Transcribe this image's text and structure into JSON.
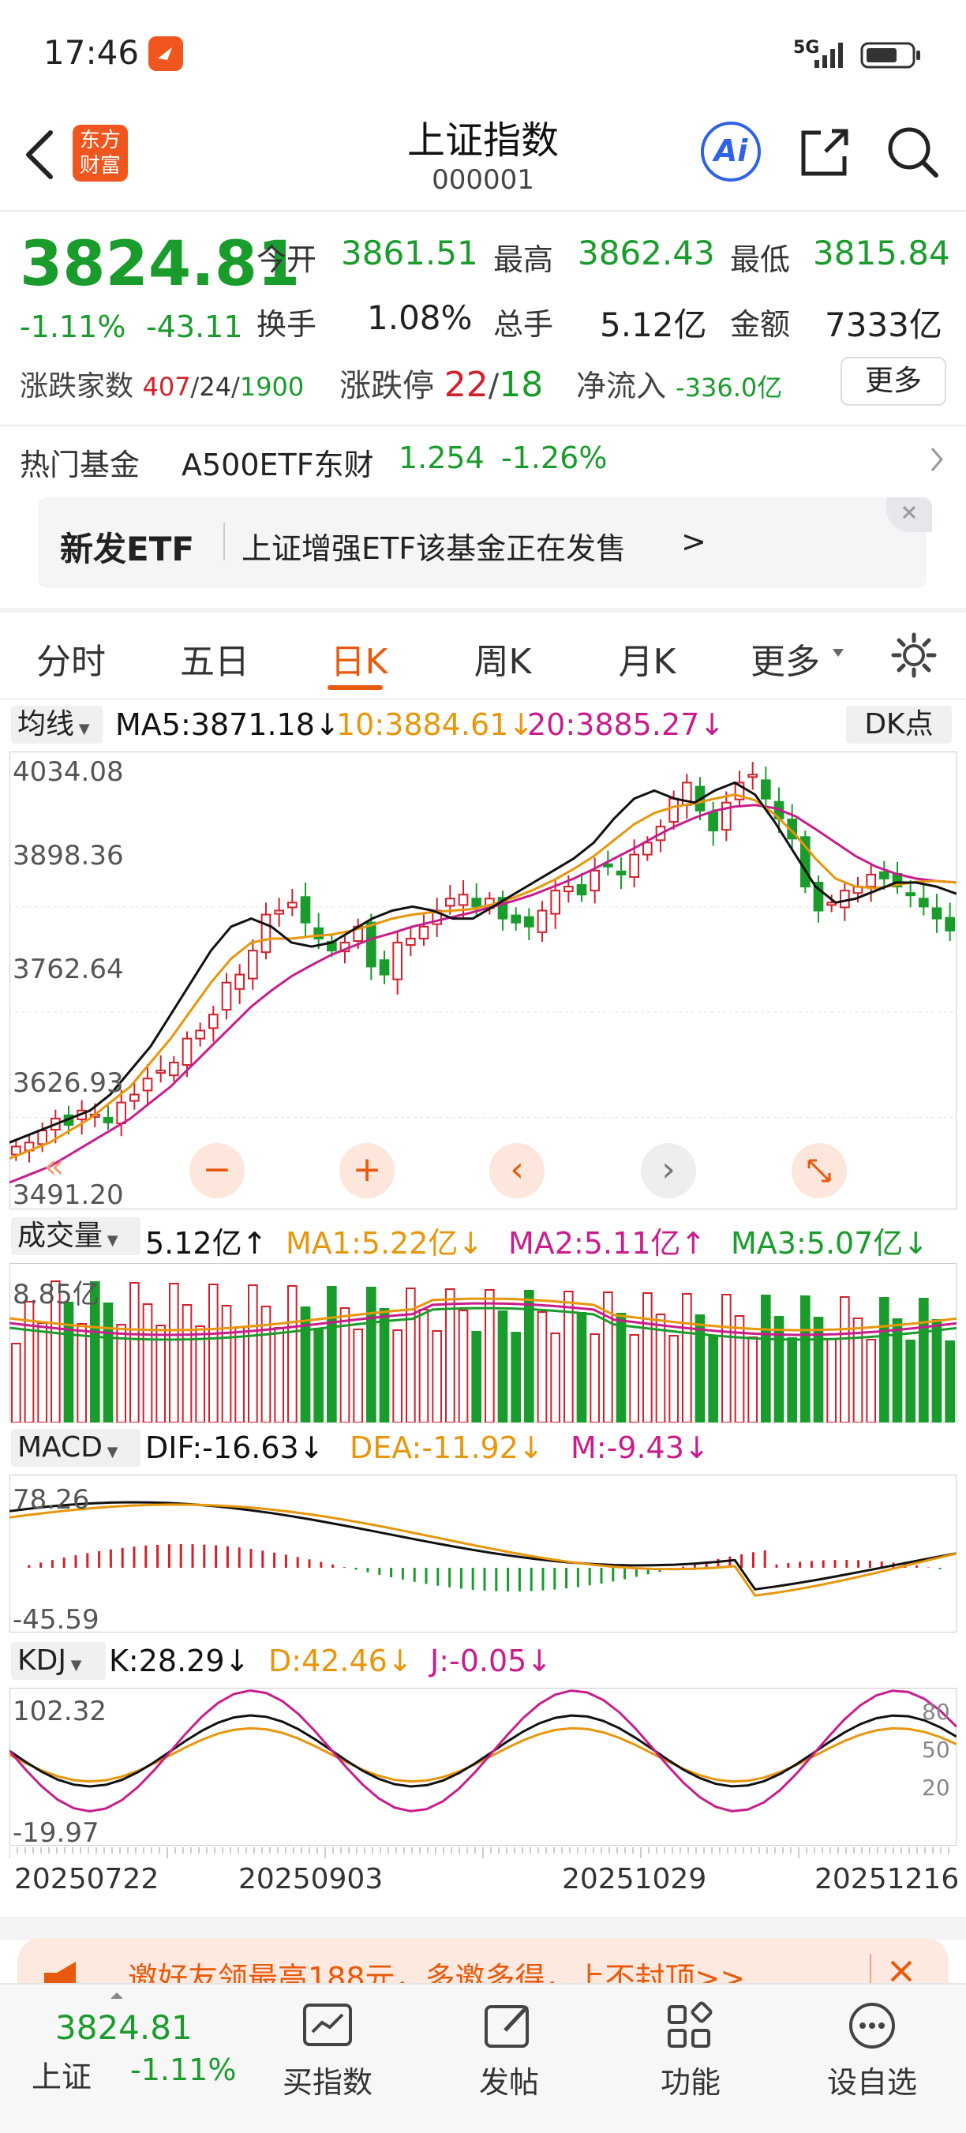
{
  "status_bar": {
    "time": "17:46",
    "network": "5G"
  },
  "header": {
    "title": "上证指数",
    "code": "000001",
    "brand_line1": "东方",
    "brand_line2": "财富",
    "ai_label": "Ai"
  },
  "quote": {
    "price": "3824.81",
    "change_pct": "-1.11%",
    "change": "-43.11",
    "open_label": "今开",
    "open": "3861.51",
    "high_label": "最高",
    "high": "3862.43",
    "low_label": "最低",
    "low": "3815.84",
    "turnover_label": "换手",
    "turnover": "1.08%",
    "volume_label": "总手",
    "volume": "5.12亿",
    "amount_label": "金额",
    "amount": "7333亿",
    "breadth_label": "涨跌家数",
    "breadth_up": "407",
    "breadth_flat": "24",
    "breadth_down": "1900",
    "limit_label": "涨跌停",
    "limit_up": "22",
    "limit_down": "18",
    "flow_label": "净流入",
    "flow": "-336.0亿",
    "more_label": "更多"
  },
  "hot_fund": {
    "label": "热门基金",
    "name": "A500ETF东财",
    "price": "1.254",
    "change": "-1.26%"
  },
  "etf_banner": {
    "tag": "新发ETF",
    "text": "上证增强ETF该基金正在发售",
    "arrow": ">"
  },
  "tabs": [
    {
      "label": "分时"
    },
    {
      "label": "五日"
    },
    {
      "label": "日K"
    },
    {
      "label": "周K"
    },
    {
      "label": "月K"
    },
    {
      "label": "更多"
    }
  ],
  "active_tab": "日K",
  "ma_legend": {
    "selector": "均线",
    "ma5": "MA5:3871.18↓",
    "ma10": "10:3884.61↓",
    "ma20": "20:3885.27↓",
    "dk": "DK点"
  },
  "price_axis": [
    "4034.08",
    "3898.36",
    "3762.64",
    "3626.93",
    "3491.20"
  ],
  "vol_legend": {
    "selector": "成交量",
    "vol": "5.12亿↑",
    "ma1": "MA1:5.22亿↓",
    "ma2": "MA2:5.11亿↑",
    "ma3": "MA3:5.07亿↓",
    "axis_top": "8.85亿"
  },
  "macd_legend": {
    "selector": "MACD",
    "dif": "DIF:-16.63↓",
    "dea": "DEA:-11.92↓",
    "m": "M:-9.43↓",
    "axis_top": "78.26",
    "axis_bottom": "-45.59"
  },
  "kdj_legend": {
    "selector": "KDJ",
    "k": "K:28.29↓",
    "d": "D:42.46↓",
    "j": "J:-0.05↓",
    "axis_top": "102.32",
    "axis_bottom": "-19.97",
    "r80": "80",
    "r50": "50",
    "r20": "20"
  },
  "dates": [
    "20250722",
    "20250903",
    "20251029",
    "20251216"
  ],
  "promo": {
    "text": "邀好友领最高188元，多邀多得，上不封顶>>"
  },
  "bottom_nav": {
    "price": "3824.81",
    "name": "上证",
    "change": "-1.11%",
    "items": [
      {
        "label": "买指数"
      },
      {
        "label": "发帖"
      },
      {
        "label": "功能"
      },
      {
        "label": "设自选"
      }
    ]
  },
  "colors": {
    "up": "#d4202b",
    "down": "#1a9c2c",
    "accent": "#e8590c",
    "ma5": "#111111",
    "ma10": "#e8960c",
    "ma20": "#c81e8c",
    "ma3_vol": "#1a9c2c"
  },
  "chart_data": {
    "type": "candlestick",
    "y_range": [
      3491.2,
      4034.08
    ],
    "date_labels": [
      "20250722",
      "20250903",
      "20251029",
      "20251216"
    ],
    "closes": [
      3555,
      3560,
      3575,
      3590,
      3582,
      3600,
      3595,
      3585,
      3610,
      3620,
      3640,
      3650,
      3660,
      3690,
      3700,
      3720,
      3760,
      3770,
      3800,
      3845,
      3850,
      3860,
      3835,
      3815,
      3800,
      3810,
      3830,
      3780,
      3770,
      3810,
      3815,
      3830,
      3850,
      3865,
      3870,
      3855,
      3865,
      3840,
      3835,
      3830,
      3850,
      3875,
      3880,
      3870,
      3900,
      3905,
      3895,
      3920,
      3935,
      3955,
      3990,
      4010,
      3975,
      3950,
      3985,
      4010,
      4020,
      3990,
      3965,
      3940,
      3880,
      3850,
      3860,
      3875,
      3880,
      3895,
      3890,
      3880,
      3870,
      3855,
      3840,
      3825
    ],
    "ma5": [
      3560,
      3570,
      3580,
      3590,
      3600,
      3620,
      3650,
      3680,
      3720,
      3760,
      3800,
      3830,
      3840,
      3830,
      3810,
      3805,
      3810,
      3825,
      3840,
      3850,
      3855,
      3850,
      3840,
      3840,
      3855,
      3870,
      3885,
      3900,
      3915,
      3935,
      3965,
      3990,
      4000,
      3990,
      3985,
      4000,
      4010,
      3995,
      3960,
      3920,
      3880,
      3860,
      3865,
      3875,
      3885,
      3885,
      3880,
      3871
    ],
    "ma10": [
      3540,
      3550,
      3560,
      3575,
      3590,
      3610,
      3630,
      3660,
      3690,
      3725,
      3760,
      3790,
      3810,
      3815,
      3815,
      3818,
      3820,
      3825,
      3832,
      3840,
      3845,
      3848,
      3850,
      3852,
      3858,
      3866,
      3876,
      3888,
      3902,
      3918,
      3938,
      3958,
      3972,
      3980,
      3984,
      3990,
      3995,
      3988,
      3970,
      3945,
      3915,
      3890,
      3880,
      3878,
      3882,
      3886,
      3887,
      3885
    ],
    "ma20": [
      3510,
      3520,
      3530,
      3545,
      3560,
      3575,
      3590,
      3610,
      3630,
      3655,
      3680,
      3705,
      3730,
      3750,
      3768,
      3782,
      3795,
      3805,
      3815,
      3822,
      3830,
      3836,
      3842,
      3848,
      3855,
      3862,
      3870,
      3880,
      3890,
      3902,
      3915,
      3928,
      3942,
      3955,
      3966,
      3975,
      3980,
      3982,
      3978,
      3968,
      3952,
      3935,
      3918,
      3905,
      3896,
      3890,
      3887,
      3885
    ]
  }
}
